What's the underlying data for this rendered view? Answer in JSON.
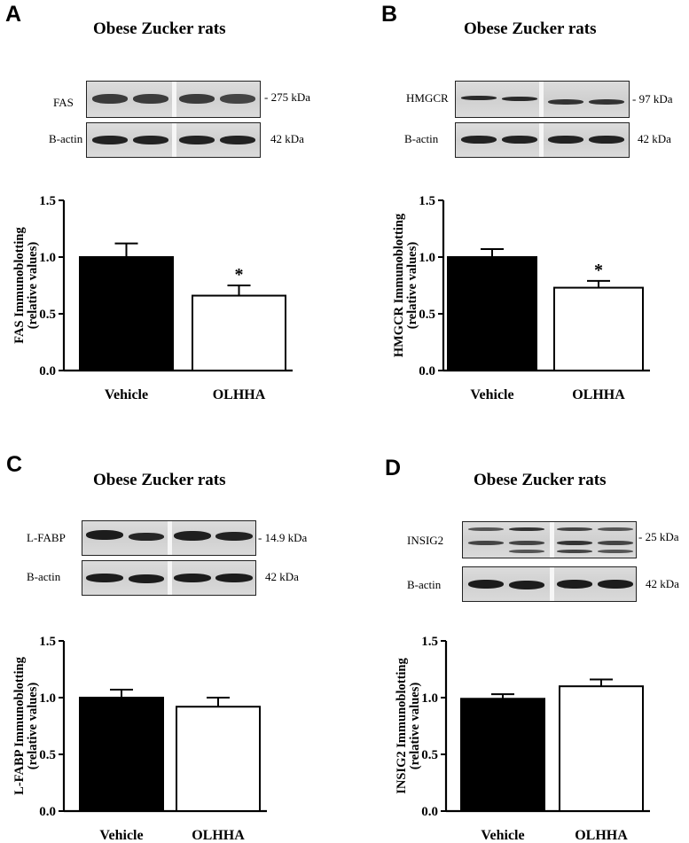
{
  "panels": [
    {
      "letter": "A",
      "title": "Obese Zucker rats",
      "blot": {
        "protein": "FAS",
        "protein_kda": "- 275 kDa",
        "loading": "B-actin",
        "loading_kda": "42 kDa"
      },
      "chart_data": {
        "type": "bar",
        "categories": [
          "Vehicle",
          "OLHHA"
        ],
        "values": [
          1.0,
          0.66
        ],
        "errors": [
          0.12,
          0.09
        ],
        "significance": [
          "",
          "*"
        ],
        "ylabel_line1": "FAS Immunoblotting",
        "ylabel_line2": "(relative values)",
        "ylim": [
          0,
          1.5
        ],
        "yticks": [
          "0.0",
          "0.5",
          "1.0",
          "1.5"
        ],
        "colors": [
          "#000000",
          "#ffffff"
        ]
      }
    },
    {
      "letter": "B",
      "title": "Obese Zucker rats",
      "blot": {
        "protein": "HMGCR",
        "protein_kda": "- 97 kDa",
        "loading": "B-actin",
        "loading_kda": "42 kDa"
      },
      "chart_data": {
        "type": "bar",
        "categories": [
          "Vehicle",
          "OLHHA"
        ],
        "values": [
          1.0,
          0.73
        ],
        "errors": [
          0.07,
          0.06
        ],
        "significance": [
          "",
          "*"
        ],
        "ylabel_line1": "HMGCR Immunoblotting",
        "ylabel_line2": "(relative values)",
        "ylim": [
          0,
          1.5
        ],
        "yticks": [
          "0.0",
          "0.5",
          "1.0",
          "1.5"
        ],
        "colors": [
          "#000000",
          "#ffffff"
        ]
      }
    },
    {
      "letter": "C",
      "title": "Obese Zucker rats",
      "blot": {
        "protein": "L-FABP",
        "protein_kda": "- 14.9 kDa",
        "loading": "B-actin",
        "loading_kda": "42 kDa"
      },
      "chart_data": {
        "type": "bar",
        "categories": [
          "Vehicle",
          "OLHHA"
        ],
        "values": [
          1.0,
          0.92
        ],
        "errors": [
          0.07,
          0.08
        ],
        "significance": [
          "",
          ""
        ],
        "ylabel_line1": "L-FABP Immunoblotting",
        "ylabel_line2": "(relative values)",
        "ylim": [
          0,
          1.5
        ],
        "yticks": [
          "0.0",
          "0.5",
          "1.0",
          "1.5"
        ],
        "colors": [
          "#000000",
          "#ffffff"
        ]
      }
    },
    {
      "letter": "D",
      "title": "Obese Zucker rats",
      "blot": {
        "protein": "INSIG2",
        "protein_kda": "- 25 kDa",
        "loading": "B-actin",
        "loading_kda": "42 kDa"
      },
      "chart_data": {
        "type": "bar",
        "categories": [
          "Vehicle",
          "OLHHA"
        ],
        "values": [
          0.99,
          1.1
        ],
        "errors": [
          0.04,
          0.06
        ],
        "significance": [
          "",
          ""
        ],
        "ylabel_line1": "INSIG2 Immunoblotting",
        "ylabel_line2": "(relative values)",
        "ylim": [
          0,
          1.5
        ],
        "yticks": [
          "0.0",
          "0.5",
          "1.0",
          "1.5"
        ],
        "colors": [
          "#000000",
          "#ffffff"
        ]
      }
    }
  ]
}
